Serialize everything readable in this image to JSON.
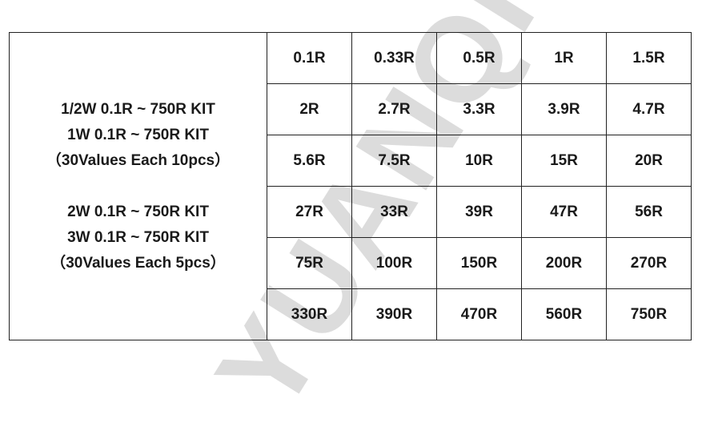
{
  "watermark": "YUANQI",
  "description": {
    "group1": [
      "1/2W 0.1R ~ 750R KIT",
      "1W 0.1R ~ 750R KIT",
      "（30Values Each 10pcs）"
    ],
    "group2": [
      "2W 0.1R ~ 750R KIT",
      "3W 0.1R ~ 750R KIT",
      "（30Values Each 5pcs）"
    ]
  },
  "values": [
    [
      "0.1R",
      "0.33R",
      "0.5R",
      "1R",
      "1.5R"
    ],
    [
      "2R",
      "2.7R",
      "3.3R",
      "3.9R",
      "4.7R"
    ],
    [
      "5.6R",
      "7.5R",
      "10R",
      "15R",
      "20R"
    ],
    [
      "27R",
      "33R",
      "39R",
      "47R",
      "56R"
    ],
    [
      "75R",
      "100R",
      "150R",
      "200R",
      "270R"
    ],
    [
      "330R",
      "390R",
      "470R",
      "560R",
      "750R"
    ]
  ]
}
